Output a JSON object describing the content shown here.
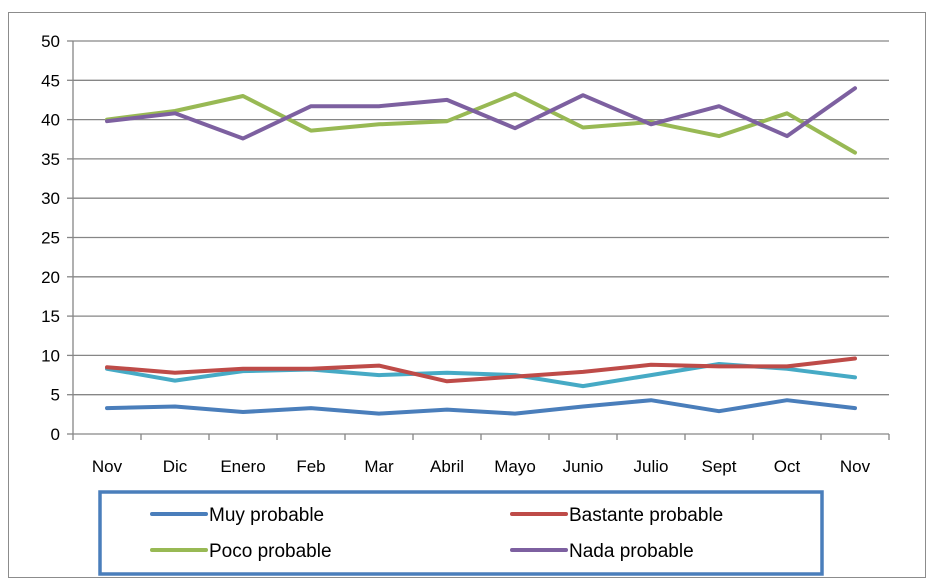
{
  "chart_data": {
    "type": "line",
    "title": "",
    "xlabel": "",
    "ylabel": "",
    "categories": [
      "Nov",
      "Dic",
      "Enero",
      "Feb",
      "Mar",
      "Abril",
      "Mayo",
      "Junio",
      "Julio",
      "Sept",
      "Oct",
      "Nov"
    ],
    "ylim": [
      0,
      50
    ],
    "yticks": [
      0,
      5,
      10,
      15,
      20,
      25,
      30,
      35,
      40,
      45,
      50
    ],
    "grid": true,
    "legend_position": "bottom",
    "series": [
      {
        "name": "Muy probable",
        "color": "#4a7ebb",
        "values": [
          3.3,
          3.5,
          2.8,
          3.3,
          2.6,
          3.1,
          2.6,
          3.5,
          4.3,
          2.9,
          4.3,
          3.3
        ]
      },
      {
        "name": "Bastante probable",
        "color": "#be4b48",
        "values": [
          8.5,
          7.8,
          8.3,
          8.3,
          8.7,
          6.7,
          7.3,
          7.9,
          8.8,
          8.6,
          8.6,
          9.6
        ]
      },
      {
        "name": "Poco probable",
        "color": "#98b954",
        "values": [
          40.0,
          41.1,
          43.0,
          38.6,
          39.4,
          39.8,
          43.3,
          39.0,
          39.7,
          37.9,
          40.8,
          35.8
        ]
      },
      {
        "name": "Nada probable",
        "color": "#7d60a0",
        "values": [
          39.8,
          40.8,
          37.6,
          41.7,
          41.7,
          42.5,
          38.9,
          43.1,
          39.4,
          41.7,
          37.9,
          44.0
        ]
      },
      {
        "name": "",
        "color": "#46aac5",
        "values": [
          8.3,
          6.8,
          8.0,
          8.2,
          7.5,
          7.8,
          7.5,
          6.1,
          7.5,
          8.9,
          8.3,
          7.2
        ]
      }
    ]
  }
}
